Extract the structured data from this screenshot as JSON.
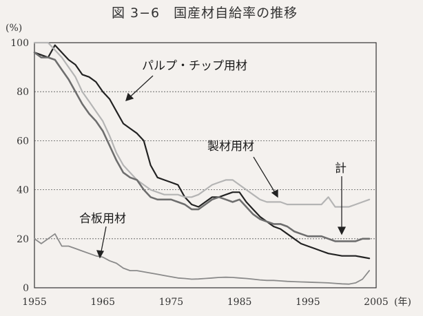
{
  "chart_data": {
    "type": "line",
    "title": "図 3−6　国産材自給率の推移",
    "ylabel": "(%)",
    "xunit": "(年)",
    "xlim": [
      1955,
      2005
    ],
    "ylim": [
      0,
      100
    ],
    "xticks": [
      "1955",
      "1965",
      "1975",
      "1985",
      "1995",
      "2005"
    ],
    "yticks": [
      "0",
      "20",
      "40",
      "60",
      "80",
      "100"
    ],
    "grid": "horizontal-dashed",
    "series": [
      {
        "name": "パルプ・チップ用材",
        "color": "#222222",
        "x": [
          1955,
          1956,
          1957,
          1958,
          1959,
          1960,
          1961,
          1962,
          1963,
          1964,
          1965,
          1966,
          1967,
          1968,
          1969,
          1970,
          1971,
          1972,
          1973,
          1974,
          1975,
          1976,
          1977,
          1978,
          1979,
          1980,
          1981,
          1982,
          1983,
          1984,
          1985,
          1986,
          1987,
          1988,
          1989,
          1990,
          1991,
          1992,
          1993,
          1994,
          1995,
          1996,
          1997,
          1998,
          1999,
          2000,
          2001,
          2002,
          2003,
          2004
        ],
        "y": [
          96,
          95,
          94,
          99,
          96,
          93,
          91,
          87,
          86,
          84,
          80,
          77,
          72,
          67,
          65,
          63,
          60,
          50,
          45,
          44,
          43,
          42,
          37,
          34,
          33,
          35,
          37,
          37,
          38,
          39,
          39,
          35,
          32,
          29,
          27,
          25,
          24,
          22,
          20,
          18,
          17,
          16,
          15,
          14,
          13.5,
          13,
          13,
          13,
          12.5,
          12
        ]
      },
      {
        "name": "製材用材",
        "color": "#b4b4b4",
        "x": [
          1955,
          1956,
          1957,
          1958,
          1959,
          1960,
          1961,
          1962,
          1963,
          1964,
          1965,
          1966,
          1967,
          1968,
          1969,
          1970,
          1971,
          1972,
          1973,
          1974,
          1975,
          1976,
          1977,
          1978,
          1979,
          1980,
          1981,
          1982,
          1983,
          1984,
          1985,
          1986,
          1987,
          1988,
          1989,
          1990,
          1991,
          1992,
          1993,
          1994,
          1995,
          1996,
          1997,
          1998,
          1999,
          2000,
          2001,
          2002,
          2003,
          2004
        ],
        "y": [
          100,
          100,
          100,
          97,
          94,
          90,
          86,
          80,
          76,
          72,
          68,
          62,
          55,
          50,
          47,
          44,
          42,
          40,
          39,
          38,
          38,
          38,
          37,
          37,
          38,
          40,
          42,
          43,
          44,
          44,
          42,
          40,
          38,
          36,
          35,
          35,
          35,
          34,
          34,
          34,
          34,
          34,
          34,
          37,
          33,
          33,
          33,
          34,
          35,
          36
        ]
      },
      {
        "name": "計",
        "color": "#6e6e6e",
        "x": [
          1955,
          1956,
          1957,
          1958,
          1959,
          1960,
          1961,
          1962,
          1963,
          1964,
          1965,
          1966,
          1967,
          1968,
          1969,
          1970,
          1971,
          1972,
          1973,
          1974,
          1975,
          1976,
          1977,
          1978,
          1979,
          1980,
          1981,
          1982,
          1983,
          1984,
          1985,
          1986,
          1987,
          1988,
          1989,
          1990,
          1991,
          1992,
          1993,
          1994,
          1995,
          1996,
          1997,
          1998,
          1999,
          2000,
          2001,
          2002,
          2003,
          2004
        ],
        "y": [
          96,
          94,
          94,
          93,
          89,
          85,
          80,
          75,
          71,
          68,
          64,
          58,
          52,
          47,
          45,
          44,
          40,
          37,
          36,
          36,
          36,
          35,
          34,
          32,
          32,
          34,
          36,
          37,
          36,
          35,
          36,
          33,
          30,
          28,
          27,
          26,
          26,
          25,
          23,
          22,
          21,
          21,
          21,
          20,
          19,
          19,
          19,
          19,
          20,
          20
        ]
      },
      {
        "name": "合板用材",
        "color": "#8a8a8a",
        "x": [
          1955,
          1956,
          1957,
          1958,
          1959,
          1960,
          1961,
          1962,
          1963,
          1964,
          1965,
          1966,
          1967,
          1968,
          1969,
          1970,
          1971,
          1972,
          1973,
          1974,
          1975,
          1976,
          1977,
          1978,
          1979,
          1980,
          1981,
          1982,
          1983,
          1984,
          1985,
          1986,
          1987,
          1988,
          1989,
          1990,
          1991,
          1992,
          1993,
          1994,
          1995,
          1996,
          1997,
          1998,
          1999,
          2000,
          2001,
          2002,
          2003,
          2004
        ],
        "y": [
          20,
          18,
          20,
          22,
          17,
          17,
          16,
          15,
          14,
          13,
          12.5,
          11,
          10,
          8,
          7,
          7,
          6.5,
          6,
          5.5,
          5,
          4.5,
          4,
          3.8,
          3.5,
          3.6,
          3.8,
          4,
          4.2,
          4.3,
          4.2,
          4,
          3.8,
          3.5,
          3.2,
          3,
          3,
          2.8,
          2.6,
          2.5,
          2.4,
          2.3,
          2.2,
          2.1,
          2,
          1.8,
          1.6,
          1.5,
          2,
          3.5,
          7
        ]
      }
    ],
    "annotations": [
      {
        "text": "パルプ・チップ用材",
        "series": "パルプ・チップ用材"
      },
      {
        "text": "製材用材",
        "series": "製材用材"
      },
      {
        "text": "計",
        "series": "計"
      },
      {
        "text": "合板用材",
        "series": "合板用材"
      }
    ]
  }
}
